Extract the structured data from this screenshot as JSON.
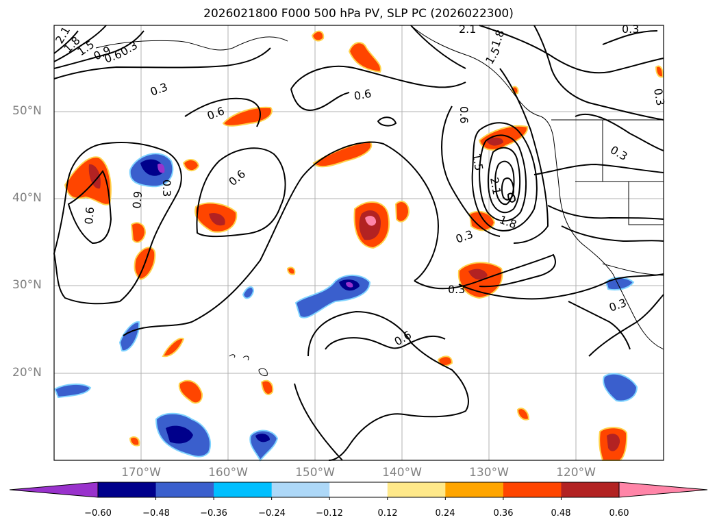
{
  "title": "2026021800 F000 500 hPa PV, SLP PC (2026022300)",
  "lat_ticks": [
    "50°N",
    "40°N",
    "30°N",
    "20°N"
  ],
  "lon_ticks": [
    "170°W",
    "160°W",
    "150°W",
    "140°W",
    "130°W",
    "120°W"
  ],
  "contour_labels": [
    "2.1",
    "1.8",
    "1.5",
    "1.2",
    "0.9",
    "0.6",
    "0.3"
  ],
  "colorbar": {
    "ticks": [
      "−0.60",
      "−0.48",
      "−0.36",
      "−0.24",
      "−0.12",
      "0.12",
      "0.24",
      "0.36",
      "0.48",
      "0.60"
    ],
    "colors": [
      "#9932CC",
      "#00008B",
      "#3A5FCD",
      "#00BFFF",
      "#ADD8F8",
      "#FFFFFF",
      "#FFE98A",
      "#FFA500",
      "#FF4500",
      "#B22222",
      "#FF85A8"
    ]
  },
  "map_data": {
    "projection": "PlateCarree",
    "lon_range": [
      -180,
      -110
    ],
    "lat_range": [
      10,
      60
    ],
    "fill_variable": "500 hPa PV",
    "contour_variable": "SLP PC"
  }
}
